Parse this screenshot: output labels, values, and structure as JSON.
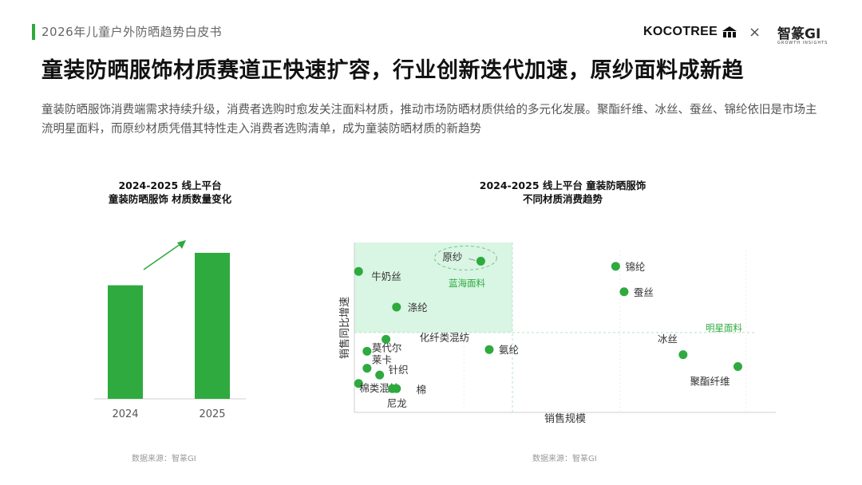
{
  "header": {
    "report_title": "2026年儿童户外防晒趋势白皮书",
    "brand_left": "KOCOTREE",
    "brand_separator": "×",
    "brand_right": "智篆GI",
    "brand_right_sub": "GROWTH INSIGHTS"
  },
  "headline": "童装防晒服饰材质赛道正快速扩容，行业创新迭代加速，原纱面料成新趋",
  "description": "童装防晒服饰消费端需求持续升级，消费者选购时愈发关注面料材质，推动市场防晒材质供给的多元化发展。聚酯纤维、冰丝、蚕丝、锦纶依旧是市场主流明星面料，而原纱材质凭借其特性走入消费者选购清单，成为童装防晒材质的新趋势",
  "chart_left_title_line1": "2024-2025 线上平台",
  "chart_left_title_line2": "童装防晒服饰 材质数量变化",
  "chart_right_title_line1": "2024-2025 线上平台 童装防晒服饰",
  "chart_right_title_line2": "不同材质消费趋势",
  "source_left": "数据来源：智篆GI",
  "source_right": "数据来源：智篆GI",
  "colors": {
    "accent": "#2eaa3f",
    "quadrant_fill": "#d9f5e3",
    "quadrant_label": "#2eaa3f"
  },
  "chart_data": [
    {
      "type": "bar",
      "categories": [
        "2024",
        "2025"
      ],
      "values": [
        63,
        81
      ],
      "ylim": [
        0,
        100
      ],
      "trend_arrow": "up",
      "xlabel": "",
      "ylabel": ""
    },
    {
      "type": "scatter",
      "xlabel": "销售规模",
      "ylabel": "销售同比增速",
      "xlim": [
        0,
        100
      ],
      "ylim": [
        0,
        100
      ],
      "quadrant_labels": [
        "蓝海面料",
        "明星面料"
      ],
      "points": [
        {
          "label": "原纱",
          "x": 30,
          "y": 89,
          "highlight": true
        },
        {
          "label": "牛奶丝",
          "x": 1,
          "y": 83
        },
        {
          "label": "涤纶",
          "x": 10,
          "y": 62
        },
        {
          "label": "化纤类混纺",
          "x": 7.5,
          "y": 43
        },
        {
          "label": "莫代尔",
          "x": 3,
          "y": 36
        },
        {
          "label": "莱卡",
          "x": 3,
          "y": 26
        },
        {
          "label": "针织",
          "x": 6,
          "y": 22
        },
        {
          "label": "棉类混纺",
          "x": 1,
          "y": 17
        },
        {
          "label": "棉",
          "x": 9,
          "y": 14
        },
        {
          "label": "尼龙",
          "x": 10,
          "y": 14
        },
        {
          "label": "氨纶",
          "x": 32,
          "y": 37
        },
        {
          "label": "锦纶",
          "x": 62,
          "y": 86
        },
        {
          "label": "蚕丝",
          "x": 64,
          "y": 71
        },
        {
          "label": "冰丝",
          "x": 78,
          "y": 34
        },
        {
          "label": "聚酯纤维",
          "x": 91,
          "y": 27
        }
      ]
    }
  ]
}
